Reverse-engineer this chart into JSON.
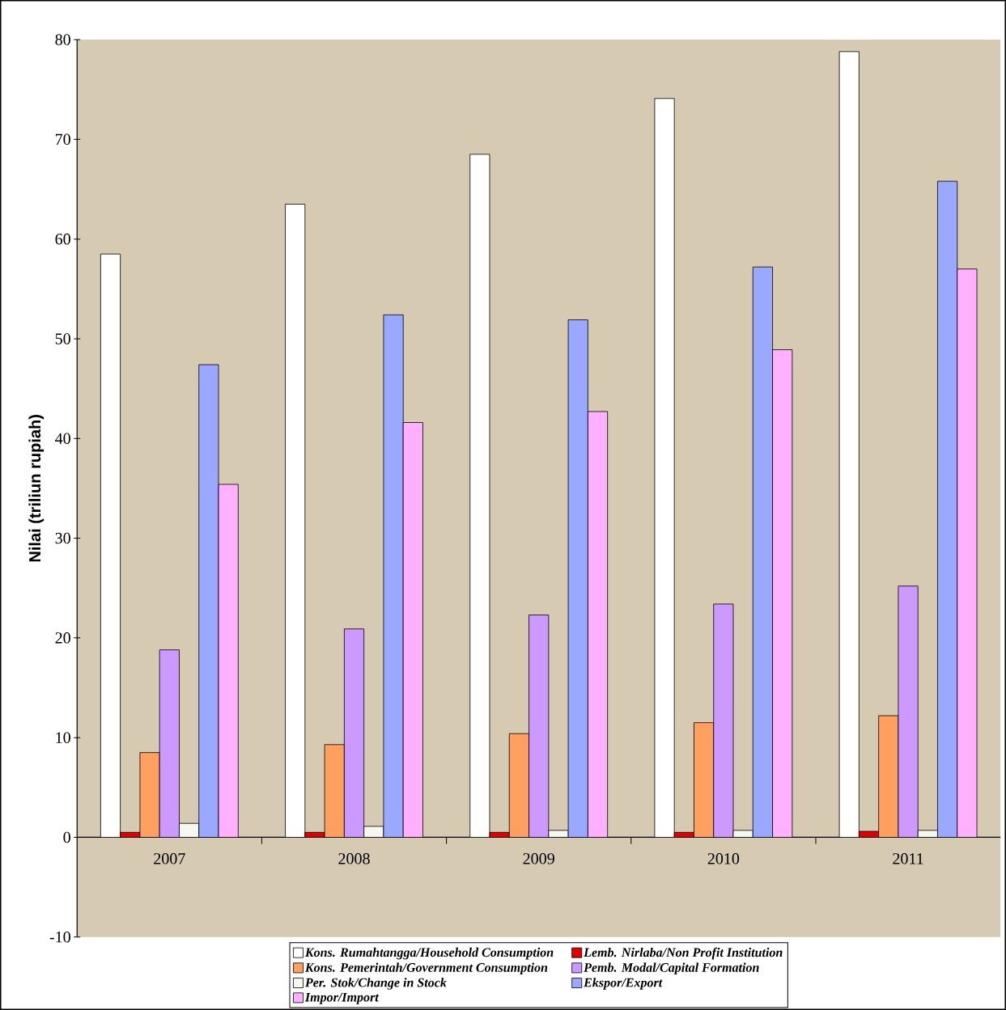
{
  "chart_data": {
    "type": "bar",
    "ylabel": "Nilai (triliun rupiah)",
    "categories": [
      "2007",
      "2008",
      "2009",
      "2010",
      "2011"
    ],
    "series": [
      {
        "name": "Kons. Rumahtangga/Household Consumption",
        "color": "#ffffff",
        "values": [
          58.5,
          63.5,
          68.5,
          74.1,
          78.8
        ]
      },
      {
        "name": "Lemb. Nirlaba/Non Profit Institution",
        "color": "#e00000",
        "values": [
          0.5,
          0.5,
          0.5,
          0.5,
          0.6
        ]
      },
      {
        "name": "Kons. Pemerintah/Government Consumption",
        "color": "#ffa060",
        "values": [
          8.5,
          9.3,
          10.4,
          11.5,
          12.2
        ]
      },
      {
        "name": "Pemb. Modal/Capital Formation",
        "color": "#cc99ff",
        "values": [
          18.8,
          20.9,
          22.3,
          23.4,
          25.2
        ]
      },
      {
        "name": "Per. Stok/Change in Stock",
        "color": "#f4f8ee",
        "values": [
          1.4,
          1.1,
          0.7,
          0.7,
          0.7
        ]
      },
      {
        "name": "Ekspor/Export",
        "color": "#9aa8ff",
        "values": [
          47.4,
          52.4,
          51.9,
          57.2,
          65.8
        ]
      },
      {
        "name": "Impor/Import",
        "color": "#ffb0ff",
        "values": [
          35.4,
          41.6,
          42.7,
          48.9,
          57.0
        ]
      }
    ],
    "ylim": [
      -10,
      80
    ],
    "yticks": [
      -10,
      0,
      10,
      20,
      30,
      40,
      50,
      60,
      70,
      80
    ],
    "grid": false,
    "legend": "bottom"
  }
}
